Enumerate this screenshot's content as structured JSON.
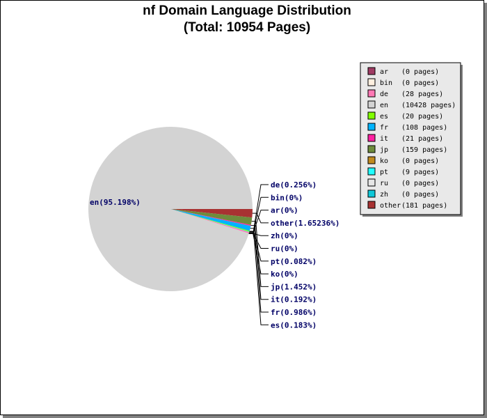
{
  "chart_data": {
    "type": "pie",
    "title": "nf Domain Language Distribution",
    "subtitle": "(Total: 10954 Pages)",
    "start_angle_deg": 0,
    "slices": [
      {
        "name": "ar",
        "value": 0,
        "legend": "(0 pages)",
        "label": "ar(0%)",
        "color": "#a03c64"
      },
      {
        "name": "bin",
        "value": 0,
        "legend": "(0 pages)",
        "label": "bin(0%)",
        "color": "#fff0e0"
      },
      {
        "name": "de",
        "value": 28,
        "legend": "(28 pages)",
        "label": "de(0.256%)",
        "color": "#ff78b4"
      },
      {
        "name": "en",
        "value": 10428,
        "legend": "(10428 pages)",
        "label": "en(95.198%)",
        "color": "#d3d3d3"
      },
      {
        "name": "es",
        "value": 20,
        "legend": "(20 pages)",
        "label": "es(0.183%)",
        "color": "#80ff00"
      },
      {
        "name": "fr",
        "value": 108,
        "legend": "(108 pages)",
        "label": "fr(0.986%)",
        "color": "#00b4ff"
      },
      {
        "name": "it",
        "value": 21,
        "legend": "(21 pages)",
        "label": "it(0.192%)",
        "color": "#ff20a0"
      },
      {
        "name": "jp",
        "value": 159,
        "legend": "(159 pages)",
        "label": "jp(1.452%)",
        "color": "#6e8c3c"
      },
      {
        "name": "ko",
        "value": 0,
        "legend": "(0 pages)",
        "label": "ko(0%)",
        "color": "#c08a1e"
      },
      {
        "name": "pt",
        "value": 9,
        "legend": "(9 pages)",
        "label": "pt(0.082%)",
        "color": "#20ffff"
      },
      {
        "name": "ru",
        "value": 0,
        "legend": "(0 pages)",
        "label": "ru(0%)",
        "color": "#e6e6e6"
      },
      {
        "name": "zh",
        "value": 0,
        "legend": "(0 pages)",
        "label": "zh(0%)",
        "color": "#10c8d8"
      },
      {
        "name": "other",
        "value": 181,
        "legend": "(181 pages)",
        "label": "other(1.65236%)",
        "color": "#a83232"
      }
    ],
    "right_label_order": [
      "de",
      "bin",
      "ar",
      "other",
      "zh",
      "ru",
      "pt",
      "ko",
      "jp",
      "it",
      "fr",
      "es"
    ],
    "legend_position": "top-right"
  }
}
